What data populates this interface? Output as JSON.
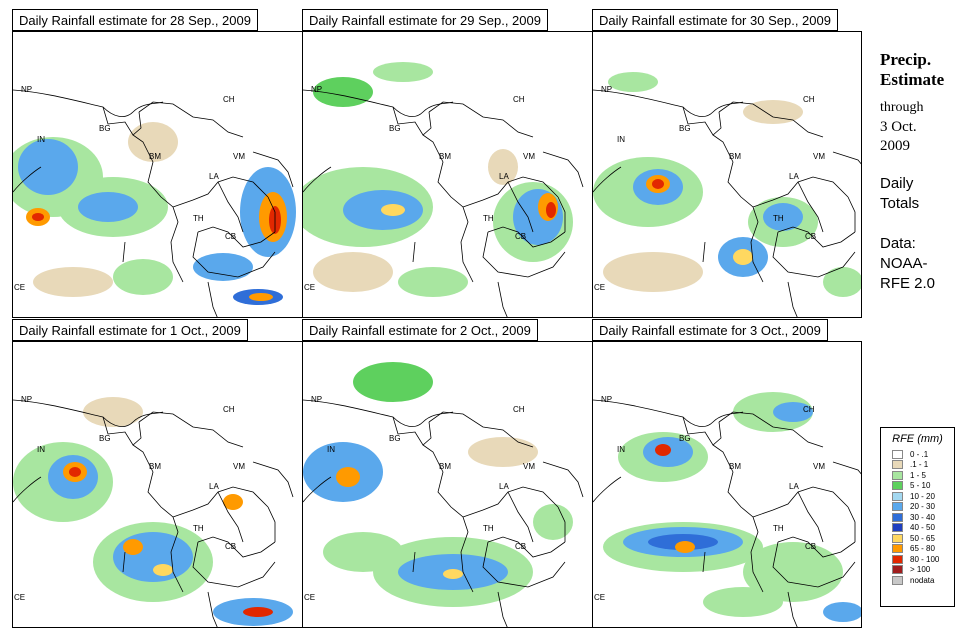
{
  "panels": [
    {
      "title": "Daily Rainfall estimate for  28 Sep., 2009"
    },
    {
      "title": "Daily Rainfall estimate for  29 Sep., 2009"
    },
    {
      "title": "Daily Rainfall estimate for  30 Sep., 2009"
    },
    {
      "title": "Daily Rainfall estimate for  1 Oct., 2009"
    },
    {
      "title": "Daily Rainfall estimate for  2 Oct., 2009"
    },
    {
      "title": "Daily Rainfall estimate for  3 Oct., 2009"
    }
  ],
  "country_labels": {
    "np": "NP",
    "ch": "CH",
    "in": "IN",
    "bg": "BG",
    "bm": "BM",
    "vm": "VM",
    "la": "LA",
    "th": "TH",
    "cb": "CB",
    "ce": "CE"
  },
  "side": {
    "title_line1": "Precip.",
    "title_line2": "Estimate",
    "through": "through",
    "date_line1": "3 Oct.",
    "date_line2": "2009",
    "daily_line1": "Daily",
    "daily_line2": "Totals",
    "data_line1": "Data:",
    "data_line2": "NOAA-",
    "data_line3": "RFE 2.0"
  },
  "legend": {
    "title": "RFE (mm)",
    "items": [
      {
        "label": "0 - .1",
        "color": "#ffffff"
      },
      {
        "label": ".1 - 1",
        "color": "#e8d9b9"
      },
      {
        "label": "1 - 5",
        "color": "#a8e6a0"
      },
      {
        "label": "5 - 10",
        "color": "#5ed05e"
      },
      {
        "label": "10 - 20",
        "color": "#a3d8f0"
      },
      {
        "label": "20 - 30",
        "color": "#5aa8ec"
      },
      {
        "label": "30 - 40",
        "color": "#2f6ed8"
      },
      {
        "label": "40 - 50",
        "color": "#1e3fc0"
      },
      {
        "label": "50 - 65",
        "color": "#ffd860"
      },
      {
        "label": "65 - 80",
        "color": "#ff9a00"
      },
      {
        "label": "80 - 100",
        "color": "#e22800"
      },
      {
        "label": "> 100",
        "color": "#a01e1e"
      },
      {
        "label": "nodata",
        "color": "#c8c8c8"
      }
    ]
  }
}
